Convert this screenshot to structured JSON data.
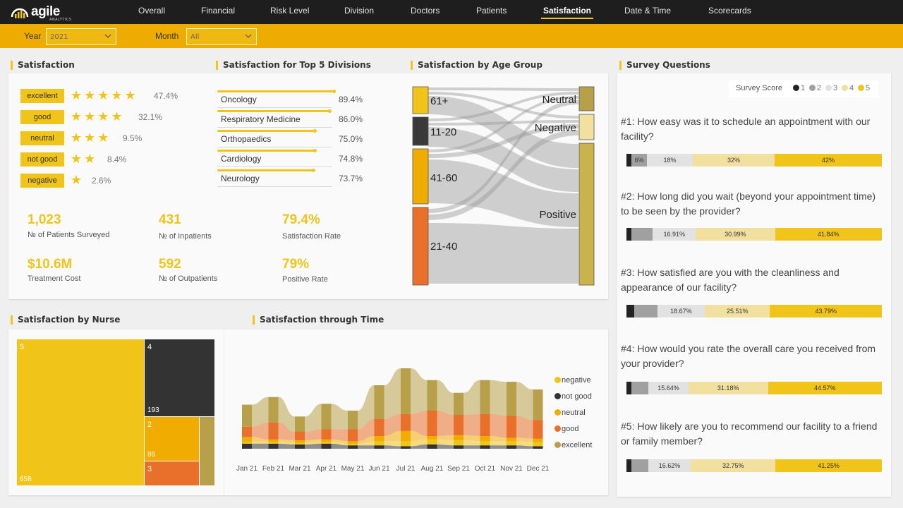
{
  "app": {
    "logo_text": "agile",
    "logo_sub": "ANALYTICS"
  },
  "nav": {
    "items": [
      "Overall",
      "Financial",
      "Risk Level",
      "Division",
      "Doctors",
      "Patients",
      "Satisfaction",
      "Date & Time",
      "Scorecards"
    ],
    "active": "Satisfaction"
  },
  "filters": {
    "year_label": "Year",
    "year_value": "2021",
    "month_label": "Month",
    "month_value": "All"
  },
  "colors": {
    "accent": "#f0c419",
    "filterbar": "#eeab00",
    "navbar": "#1e1e1e"
  },
  "satisfaction": {
    "title": "Satisfaction",
    "ratings": [
      {
        "label": "excellent",
        "stars": 5,
        "pct": "47.4%"
      },
      {
        "label": "good",
        "stars": 4,
        "pct": "32.1%"
      },
      {
        "label": "neutral",
        "stars": 3,
        "pct": "9.5%"
      },
      {
        "label": "not good",
        "stars": 2,
        "pct": "8.4%"
      },
      {
        "label": "negative",
        "stars": 1,
        "pct": "2.6%"
      }
    ],
    "kpis": [
      {
        "value": "1,023",
        "label": "№ of Patients Surveyed"
      },
      {
        "value": "431",
        "label": "№ of Inpatients"
      },
      {
        "value": "79.4%",
        "label": "Satisfaction Rate"
      },
      {
        "value": "$10.6M",
        "label": "Treatment Cost"
      },
      {
        "value": "592",
        "label": "№ of Outpatients"
      },
      {
        "value": "79%",
        "label": "Positive Rate"
      }
    ]
  },
  "divisions": {
    "title": "Satisfaction for Top 5 Divisions",
    "items": [
      {
        "name": "Oncology",
        "pct": "89.4%",
        "value": 89.4
      },
      {
        "name": "Respiratory Medicine",
        "pct": "86.0%",
        "value": 86.0
      },
      {
        "name": "Orthopaedics",
        "pct": "75.0%",
        "value": 75.0
      },
      {
        "name": "Cardiology",
        "pct": "74.8%",
        "value": 74.8
      },
      {
        "name": "Neurology",
        "pct": "73.7%",
        "value": 73.7
      }
    ]
  },
  "age_group": {
    "title": "Satisfaction by Age Group",
    "sources": [
      "61+",
      "11-20",
      "41-60",
      "21-40"
    ],
    "targets": [
      "Neutral",
      "Negative",
      "Positive"
    ]
  },
  "survey": {
    "title": "Survey Questions",
    "legend_title": "Survey Score",
    "legend": [
      {
        "label": "1",
        "color": "#222222"
      },
      {
        "label": "2",
        "color": "#a0a0a0"
      },
      {
        "label": "3",
        "color": "#e2e2e2"
      },
      {
        "label": "4",
        "color": "#f2e0a0"
      },
      {
        "label": "5",
        "color": "#f0c419"
      }
    ],
    "questions": [
      {
        "text": "#1: How easy was it to schedule an appointment with our facility?",
        "segments": [
          {
            "v": 2,
            "t": ""
          },
          {
            "v": 6,
            "t": "6%"
          },
          {
            "v": 18,
            "t": "18%"
          },
          {
            "v": 32,
            "t": "32%"
          },
          {
            "v": 42,
            "t": "42%"
          }
        ]
      },
      {
        "text": "#2: How long did you wait (beyond your appointment time) to be seen by the provider?",
        "segments": [
          {
            "v": 2,
            "t": ""
          },
          {
            "v": 8.26,
            "t": ""
          },
          {
            "v": 16.91,
            "t": "16.91%"
          },
          {
            "v": 30.99,
            "t": "30.99%"
          },
          {
            "v": 41.84,
            "t": "41.84%"
          }
        ]
      },
      {
        "text": "#3: How satisfied are you with the cleanliness and appearance of our facility?",
        "segments": [
          {
            "v": 3,
            "t": ""
          },
          {
            "v": 9.03,
            "t": ""
          },
          {
            "v": 18.67,
            "t": "18.67%"
          },
          {
            "v": 25.51,
            "t": "25.51%"
          },
          {
            "v": 43.79,
            "t": "43.79%"
          }
        ]
      },
      {
        "text": "#4: How would you rate the overall care you received from your provider?",
        "segments": [
          {
            "v": 2,
            "t": ""
          },
          {
            "v": 6.61,
            "t": ""
          },
          {
            "v": 15.64,
            "t": "15.64%"
          },
          {
            "v": 31.18,
            "t": "31.18%"
          },
          {
            "v": 44.57,
            "t": "44.57%"
          }
        ]
      },
      {
        "text": "#5: How likely are you to recommend our facility to a friend or family member?",
        "segments": [
          {
            "v": 2,
            "t": ""
          },
          {
            "v": 6.38,
            "t": ""
          },
          {
            "v": 16.62,
            "t": "16.62%"
          },
          {
            "v": 32.75,
            "t": "32.75%"
          },
          {
            "v": 41.25,
            "t": "41.25%"
          }
        ]
      }
    ]
  },
  "nurse": {
    "title": "Satisfaction by Nurse",
    "tiles": [
      {
        "label": "5",
        "value": "658"
      },
      {
        "label": "4",
        "value": "193"
      },
      {
        "label": "2",
        "value": "86"
      },
      {
        "label": "3",
        "value": ""
      }
    ]
  },
  "time": {
    "title": "Satisfaction through Time",
    "months": [
      "Jan 21",
      "Feb 21",
      "Mar 21",
      "Apr 21",
      "May 21",
      "Jun 21",
      "Jul 21",
      "Aug 21",
      "Sep 21",
      "Oct 21",
      "Nov 21",
      "Dec 21"
    ],
    "legend": [
      {
        "label": "negative",
        "color": "#f0c419"
      },
      {
        "label": "not good",
        "color": "#333333"
      },
      {
        "label": "neutral",
        "color": "#f0ac00"
      },
      {
        "label": "good",
        "color": "#e8702a"
      },
      {
        "label": "excellent",
        "color": "#b8a04a"
      }
    ]
  },
  "chart_data": {
    "type": "area",
    "title": "Satisfaction through Time",
    "categories": [
      "Jan 21",
      "Feb 21",
      "Mar 21",
      "Apr 21",
      "May 21",
      "Jun 21",
      "Jul 21",
      "Aug 21",
      "Sep 21",
      "Oct 21",
      "Nov 21",
      "Dec 21"
    ],
    "series": [
      {
        "name": "not good",
        "values": [
          6,
          6,
          5,
          6,
          4,
          4,
          3,
          5,
          4,
          4,
          4,
          3
        ]
      },
      {
        "name": "negative",
        "values": [
          2,
          2,
          2,
          2,
          2,
          5,
          6,
          6,
          6,
          5,
          5,
          5
        ]
      },
      {
        "name": "neutral",
        "values": [
          6,
          3,
          3,
          3,
          3,
          6,
          12,
          4,
          6,
          6,
          4,
          4
        ]
      },
      {
        "name": "good",
        "values": [
          12,
          20,
          10,
          12,
          14,
          20,
          20,
          30,
          24,
          26,
          26,
          22
        ]
      },
      {
        "name": "excellent",
        "values": [
          26,
          30,
          18,
          30,
          22,
          40,
          54,
          36,
          26,
          40,
          40,
          36
        ]
      }
    ]
  }
}
